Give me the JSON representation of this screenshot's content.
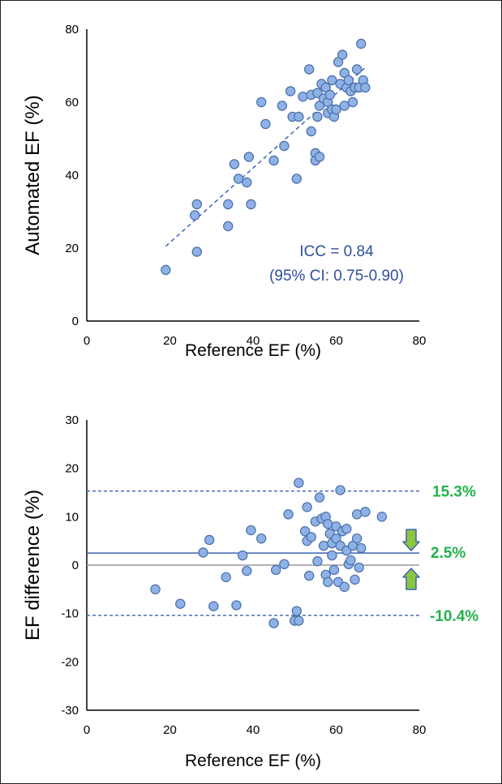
{
  "colors": {
    "point_fill": "#8fb2e6",
    "point_stroke": "#4a6fa8",
    "line_blue": "#3b63b3",
    "zero_line": "#999999",
    "annotation_text": "#2f4f9c",
    "loa_text": "#22b24c",
    "arrow_fill": "#8cc63f",
    "arrow_stroke": "#3b63b3"
  },
  "chart_data": [
    {
      "type": "scatter",
      "xlabel": "Reference EF (%)",
      "ylabel": "Automated EF (%)",
      "xlim": [
        0,
        80
      ],
      "ylim": [
        0,
        80
      ],
      "xticks": [
        "0",
        "20",
        "40",
        "60",
        "80"
      ],
      "yticks": [
        "0",
        "20",
        "40",
        "60",
        "80"
      ],
      "annotation": [
        "ICC = 0.84",
        "(95% CI: 0.75-0.90)"
      ],
      "trendline": {
        "x": [
          19,
          67
        ],
        "y": [
          20.5,
          69.5
        ]
      },
      "points": [
        [
          19,
          14
        ],
        [
          26,
          29
        ],
        [
          26.5,
          32
        ],
        [
          26.5,
          19
        ],
        [
          34,
          26
        ],
        [
          34,
          32
        ],
        [
          35.5,
          43
        ],
        [
          36.5,
          39
        ],
        [
          38.5,
          38
        ],
        [
          39,
          45
        ],
        [
          39.5,
          32
        ],
        [
          42,
          60
        ],
        [
          43,
          54
        ],
        [
          45,
          44
        ],
        [
          47,
          59
        ],
        [
          47.5,
          48
        ],
        [
          49,
          63
        ],
        [
          49.5,
          56
        ],
        [
          50.5,
          39
        ],
        [
          51,
          56
        ],
        [
          52,
          61.5
        ],
        [
          53.5,
          69
        ],
        [
          54,
          62
        ],
        [
          54,
          52
        ],
        [
          55,
          46
        ],
        [
          55,
          44
        ],
        [
          55.5,
          56
        ],
        [
          55.5,
          62.5
        ],
        [
          56,
          45
        ],
        [
          56,
          59
        ],
        [
          56.5,
          65
        ],
        [
          57,
          61
        ],
        [
          57.5,
          64
        ],
        [
          58,
          60
        ],
        [
          58,
          57
        ],
        [
          58.5,
          62
        ],
        [
          59,
          58
        ],
        [
          59,
          66
        ],
        [
          59.5,
          56
        ],
        [
          60,
          58
        ],
        [
          60.5,
          71
        ],
        [
          61,
          65
        ],
        [
          61.5,
          73
        ],
        [
          62,
          59
        ],
        [
          62,
          68
        ],
        [
          62.5,
          64
        ],
        [
          63,
          66
        ],
        [
          63.5,
          63
        ],
        [
          64,
          60
        ],
        [
          64.5,
          64
        ],
        [
          65,
          69
        ],
        [
          65.5,
          64
        ],
        [
          66,
          76
        ],
        [
          66.5,
          66
        ],
        [
          67,
          64
        ]
      ]
    },
    {
      "type": "scatter",
      "xlabel": "Reference EF (%)",
      "ylabel": "EF difference (%)",
      "xlim": [
        0,
        80
      ],
      "ylim": [
        -30,
        30
      ],
      "xticks": [
        "0",
        "20",
        "40",
        "60",
        "80"
      ],
      "yticks": [
        "-30",
        "-20",
        "-10",
        "0",
        "10",
        "20",
        "30"
      ],
      "mean_line": 2.5,
      "upper_loa": 15.3,
      "lower_loa": -10.4,
      "labels": {
        "upper": "15.3%",
        "mean": "2.5%",
        "lower": "-10.4%"
      },
      "points": [
        [
          16.5,
          -5
        ],
        [
          22.5,
          -8
        ],
        [
          28,
          2.6
        ],
        [
          29.5,
          5.2
        ],
        [
          30.5,
          -8.5
        ],
        [
          33.5,
          -2.5
        ],
        [
          36,
          -8.3
        ],
        [
          37.5,
          2
        ],
        [
          38.5,
          -1.2
        ],
        [
          39.5,
          7.2
        ],
        [
          42,
          5.5
        ],
        [
          45,
          -12
        ],
        [
          45.5,
          -1
        ],
        [
          47.5,
          0.2
        ],
        [
          48.5,
          10.5
        ],
        [
          50,
          -11.5
        ],
        [
          50.5,
          -9.5
        ],
        [
          51,
          17
        ],
        [
          51,
          -11.5
        ],
        [
          52.5,
          7
        ],
        [
          53,
          12
        ],
        [
          53,
          5
        ],
        [
          53.5,
          -2.2
        ],
        [
          54,
          5.8
        ],
        [
          55,
          9
        ],
        [
          55.5,
          0.8
        ],
        [
          56,
          14
        ],
        [
          56.5,
          9.6
        ],
        [
          57,
          4
        ],
        [
          57.5,
          10
        ],
        [
          57.5,
          -2
        ],
        [
          58,
          -3.5
        ],
        [
          58,
          8.5
        ],
        [
          58.5,
          6.5
        ],
        [
          59,
          2
        ],
        [
          59,
          4.5
        ],
        [
          59.5,
          -1
        ],
        [
          60,
          8
        ],
        [
          60,
          5.5
        ],
        [
          60.5,
          -3.5
        ],
        [
          61,
          4
        ],
        [
          61,
          15.5
        ],
        [
          61.5,
          7
        ],
        [
          62,
          -4.5
        ],
        [
          62.5,
          7.5
        ],
        [
          62.5,
          3
        ],
        [
          63,
          0.2
        ],
        [
          63.5,
          1
        ],
        [
          64,
          4
        ],
        [
          64.5,
          -3
        ],
        [
          65,
          5.5
        ],
        [
          65,
          10.5
        ],
        [
          65.5,
          -0.5
        ],
        [
          66,
          3.5
        ],
        [
          67,
          11
        ],
        [
          71,
          10
        ]
      ]
    }
  ]
}
